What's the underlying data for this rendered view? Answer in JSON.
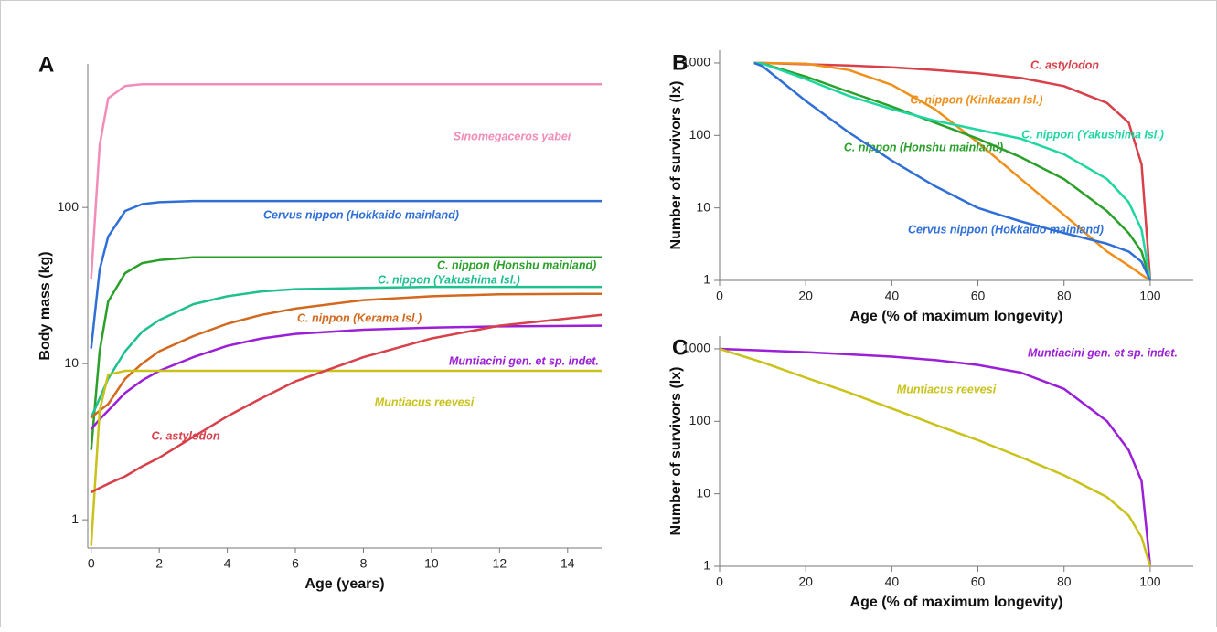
{
  "chart_data": [
    {
      "type": "line",
      "panel_label": "A",
      "xlabel": "Age (years)",
      "ylabel": "Body mass (kg)",
      "log_y": true,
      "xlim": [
        -0.1,
        15
      ],
      "ylim": [
        0.66,
        830
      ],
      "xticks": [
        0,
        2,
        4,
        6,
        8,
        10,
        12,
        14
      ],
      "yticks": [
        1,
        10,
        100
      ],
      "x": [
        0,
        0.25,
        0.5,
        1,
        1.5,
        2,
        3,
        4,
        5,
        6,
        8,
        10,
        12,
        15
      ],
      "series": [
        {
          "name": "Sinomegaceros yabei",
          "color": "#f28cb8",
          "values": [
            35,
            250,
            500,
            600,
            615,
            615,
            615,
            615,
            615,
            615,
            615,
            615,
            615,
            615
          ]
        },
        {
          "name": "Cervus nippon (Hokkaido mainland)",
          "color": "#2f6fd6",
          "values": [
            12.5,
            40,
            65,
            95,
            105,
            108,
            110,
            110,
            110,
            110,
            110,
            110,
            110,
            110
          ]
        },
        {
          "name": "C. nippon (Honshu mainland)",
          "color": "#2aa02a",
          "values": [
            2.8,
            12,
            25,
            38,
            44,
            46,
            48,
            48,
            48,
            48,
            48,
            48,
            48,
            48
          ]
        },
        {
          "name": "C. nippon (Yakushima Isl.)",
          "color": "#1fbf8f",
          "values": [
            4.5,
            6,
            8,
            12,
            16,
            19,
            24,
            27,
            29,
            30,
            30.5,
            31,
            31,
            31
          ]
        },
        {
          "name": "C. nippon (Kerama Isl.)",
          "color": "#d2691e",
          "values": [
            4.5,
            5,
            5.5,
            8,
            10,
            12,
            15,
            18,
            20.5,
            22.5,
            25.5,
            27,
            27.8,
            28
          ]
        },
        {
          "name": "Muntiacini gen. et sp. indet.",
          "color": "#9b1fd6",
          "values": [
            3.8,
            4.4,
            5,
            6.5,
            7.8,
            9,
            11,
            13,
            14.5,
            15.5,
            16.5,
            17,
            17.3,
            17.5
          ]
        },
        {
          "name": "Muntiacus reevesi",
          "color": "#c9c21a",
          "values": [
            0.68,
            5,
            8.5,
            9,
            9,
            9,
            9,
            9,
            9,
            9,
            9,
            9,
            9,
            9
          ]
        },
        {
          "name": "C. astylodon",
          "color": "#d8404a",
          "values": [
            1.5,
            1.6,
            1.7,
            1.9,
            2.2,
            2.5,
            3.4,
            4.6,
            6,
            7.7,
            11,
            14.5,
            17.5,
            20.5
          ]
        }
      ]
    },
    {
      "type": "line",
      "panel_label": "B",
      "xlabel": "Age (% of maximum longevity)",
      "ylabel": "Number of survivors (lx)",
      "log_y": true,
      "xlim": [
        0,
        110
      ],
      "ylim": [
        1,
        1500
      ],
      "xticks": [
        0,
        20,
        40,
        60,
        80,
        100
      ],
      "yticks": [
        1,
        10,
        100,
        1000
      ],
      "x": [
        8,
        10,
        20,
        30,
        40,
        50,
        60,
        70,
        80,
        90,
        95,
        98,
        100
      ],
      "series": [
        {
          "name": "C. astylodon",
          "color": "#d8404a",
          "values": [
            1000,
            1000,
            960,
            920,
            870,
            800,
            720,
            620,
            480,
            280,
            150,
            40,
            1
          ]
        },
        {
          "name": "C. nippon (Kinkazan Isl.)",
          "color": "#f0901a",
          "values": [
            1000,
            1000,
            980,
            800,
            500,
            230,
            80,
            25,
            8,
            2.5,
            1.6,
            1.2,
            1
          ]
        },
        {
          "name": "C. nippon (Honshu mainland)",
          "color": "#2aa02a",
          "values": [
            1000,
            980,
            650,
            400,
            250,
            150,
            90,
            50,
            25,
            9,
            4.5,
            2.5,
            1
          ]
        },
        {
          "name": "C. nippon (Yakushima Isl.)",
          "color": "#1fd6a0",
          "values": [
            1000,
            980,
            600,
            350,
            230,
            160,
            120,
            90,
            55,
            25,
            12,
            5,
            1
          ]
        },
        {
          "name": "Cervus nippon (Hokkaido mainland)",
          "color": "#2f6fd6",
          "values": [
            1000,
            900,
            300,
            110,
            45,
            20,
            10,
            6.5,
            4.5,
            3.2,
            2.5,
            1.8,
            1
          ]
        }
      ]
    },
    {
      "type": "line",
      "panel_label": "C",
      "xlabel": "Age (% of maximum longevity)",
      "ylabel": "Number of survivors (lx)",
      "log_y": true,
      "xlim": [
        0,
        110
      ],
      "ylim": [
        1,
        1500
      ],
      "xticks": [
        0,
        20,
        40,
        60,
        80,
        100
      ],
      "yticks": [
        1,
        10,
        100,
        1000
      ],
      "x": [
        0,
        10,
        20,
        30,
        40,
        50,
        60,
        70,
        80,
        90,
        95,
        98,
        100
      ],
      "series": [
        {
          "name": "Muntiacini gen. et sp. indet.",
          "color": "#9b1fd6",
          "values": [
            1000,
            950,
            900,
            840,
            780,
            700,
            600,
            470,
            280,
            100,
            40,
            15,
            1
          ]
        },
        {
          "name": "Muntiacus reevesi",
          "color": "#c9c21a",
          "values": [
            1000,
            650,
            400,
            250,
            150,
            90,
            55,
            32,
            18,
            9,
            5,
            2.5,
            1
          ]
        }
      ]
    }
  ]
}
